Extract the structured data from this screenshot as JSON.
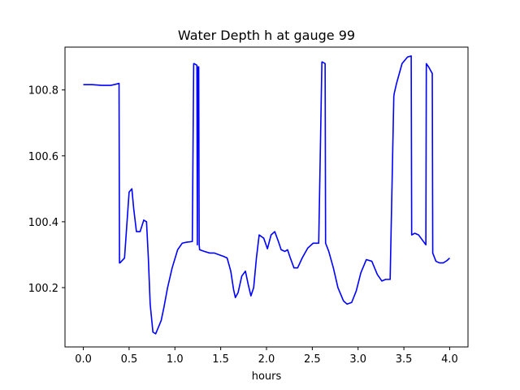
{
  "chart_data": {
    "type": "line",
    "title": "Water Depth h at gauge 99",
    "xlabel": "hours",
    "ylabel": "",
    "xlim": [
      -0.2,
      4.2
    ],
    "ylim": [
      100.02,
      100.93
    ],
    "xticks": [
      0.0,
      0.5,
      1.0,
      1.5,
      2.0,
      2.5,
      3.0,
      3.5,
      4.0
    ],
    "xtick_labels": [
      "0.0",
      "0.5",
      "1.0",
      "1.5",
      "2.0",
      "2.5",
      "3.0",
      "3.5",
      "4.0"
    ],
    "yticks": [
      100.2,
      100.4,
      100.6,
      100.8
    ],
    "ytick_labels": [
      "100.2",
      "100.4",
      "100.6",
      "100.8"
    ],
    "grid": false,
    "legend": "none",
    "series": [
      {
        "color": "#0000ff",
        "x": [
          0.0,
          0.1,
          0.2,
          0.3,
          0.35,
          0.39,
          0.395,
          0.4,
          0.45,
          0.48,
          0.5,
          0.53,
          0.55,
          0.58,
          0.62,
          0.66,
          0.69,
          0.71,
          0.73,
          0.76,
          0.79,
          0.82,
          0.85,
          0.88,
          0.92,
          0.97,
          1.03,
          1.08,
          1.13,
          1.19,
          1.205,
          1.21,
          1.24,
          1.245,
          1.25,
          1.26,
          1.265,
          1.27,
          1.32,
          1.38,
          1.43,
          1.48,
          1.53,
          1.57,
          1.61,
          1.64,
          1.66,
          1.69,
          1.73,
          1.77,
          1.8,
          1.83,
          1.86,
          1.89,
          1.92,
          1.97,
          2.01,
          2.05,
          2.09,
          2.13,
          2.16,
          2.2,
          2.23,
          2.26,
          2.3,
          2.34,
          2.39,
          2.45,
          2.51,
          2.57,
          2.605,
          2.61,
          2.64,
          2.645,
          2.68,
          2.73,
          2.78,
          2.84,
          2.88,
          2.93,
          2.98,
          3.03,
          3.09,
          3.15,
          3.21,
          3.26,
          3.3,
          3.35,
          3.39,
          3.395,
          3.42,
          3.48,
          3.54,
          3.58,
          3.585,
          3.62,
          3.66,
          3.7,
          3.74,
          3.745,
          3.77,
          3.81,
          3.815,
          3.85,
          3.89,
          3.93,
          3.97,
          4.0
        ],
        "y": [
          100.816,
          100.816,
          100.814,
          100.814,
          100.817,
          100.82,
          100.275,
          100.275,
          100.29,
          100.41,
          100.49,
          100.5,
          100.44,
          100.37,
          100.37,
          100.405,
          100.4,
          100.29,
          100.15,
          100.065,
          100.06,
          100.08,
          100.1,
          100.14,
          100.2,
          100.26,
          100.315,
          100.335,
          100.338,
          100.34,
          100.88,
          100.88,
          100.875,
          100.33,
          100.87,
          100.87,
          100.33,
          100.315,
          100.31,
          100.305,
          100.305,
          100.3,
          100.295,
          100.29,
          100.25,
          100.195,
          100.17,
          100.185,
          100.235,
          100.25,
          100.21,
          100.175,
          100.2,
          100.29,
          100.36,
          100.35,
          100.318,
          100.36,
          100.37,
          100.34,
          100.315,
          100.31,
          100.315,
          100.29,
          100.26,
          100.26,
          100.29,
          100.32,
          100.335,
          100.335,
          100.885,
          100.885,
          100.88,
          100.335,
          100.31,
          100.26,
          100.2,
          100.16,
          100.15,
          100.155,
          100.19,
          100.245,
          100.285,
          100.28,
          100.24,
          100.22,
          100.225,
          100.225,
          100.78,
          100.79,
          100.82,
          100.88,
          100.9,
          100.903,
          100.36,
          100.365,
          100.36,
          100.345,
          100.33,
          100.88,
          100.87,
          100.85,
          100.305,
          100.28,
          100.275,
          100.275,
          100.282,
          100.29
        ]
      }
    ]
  }
}
